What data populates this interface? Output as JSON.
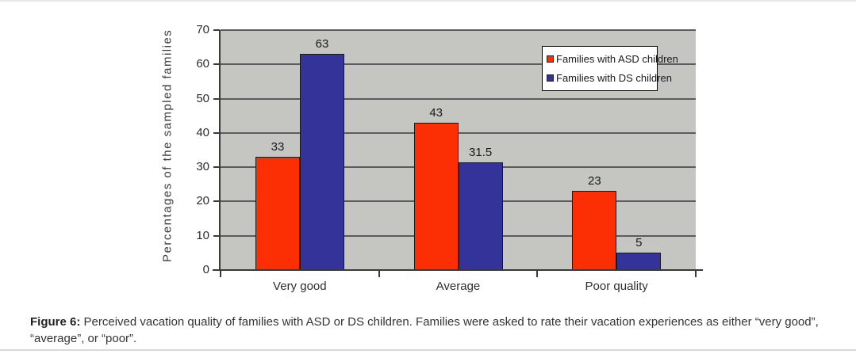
{
  "chart_data": {
    "type": "bar",
    "categories": [
      "Very good",
      "Average",
      "Poor quality"
    ],
    "series": [
      {
        "name": "Families with ASD children",
        "color": "#fb2e04",
        "values": [
          33,
          43,
          23
        ]
      },
      {
        "name": "Families with DS children",
        "color": "#333399",
        "values": [
          63,
          31.5,
          5
        ]
      }
    ],
    "title": "",
    "xlabel": "",
    "ylabel": "Percentages of the sampled families",
    "ylim": [
      0,
      70
    ],
    "yticks": [
      0,
      10,
      20,
      30,
      40,
      50,
      60,
      70
    ],
    "grid": true,
    "plot_background": "#c5c5c2",
    "legend_position": "upper-right",
    "bar_value_labels": [
      "33",
      "43",
      "23",
      "63",
      "31.5",
      "5"
    ]
  },
  "caption": {
    "label": "Figure 6:",
    "text": "Perceived vacation quality of families with ASD or DS children.  Families were asked to rate their vacation experiences as either “very good”, “average”, or “poor”."
  }
}
